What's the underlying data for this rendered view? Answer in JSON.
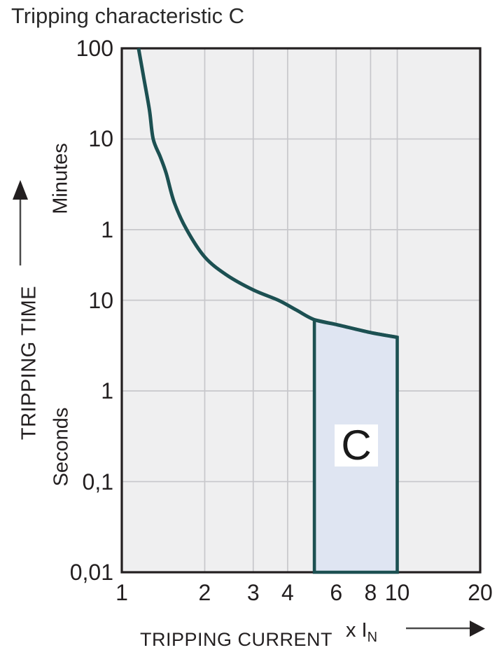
{
  "title": "Tripping characteristic C",
  "y_axis": {
    "title": "TRIPPING TIME",
    "unit_top": "Minutes",
    "unit_bottom": "Seconds"
  },
  "x_axis": {
    "title": "TRIPPING CURRENT",
    "unit_prefix": "x I",
    "unit_sub": "N"
  },
  "colors": {
    "curve": "#1c5052",
    "region_fill": "#dfe5f2",
    "region_stroke": "#1c5052",
    "plot_bg": "#efeff0",
    "grid": "#c7c7cb",
    "border": "#231f20",
    "arrow": "#2e2e2e",
    "text": "#231f20"
  },
  "chart_data": {
    "type": "line",
    "title": "Tripping characteristic C",
    "xlabel": "TRIPPING CURRENT x IN",
    "ylabel": "TRIPPING TIME",
    "x_scale": "log",
    "y_scale": "log",
    "x_range": [
      1,
      20
    ],
    "y_range_seconds": [
      6000,
      0.01
    ],
    "grid": true,
    "x_ticks": [
      {
        "v": 1,
        "label": "1"
      },
      {
        "v": 2,
        "label": "2"
      },
      {
        "v": 3,
        "label": "3"
      },
      {
        "v": 4,
        "label": "4"
      },
      {
        "v": 6,
        "label": "6"
      },
      {
        "v": 8,
        "label": "8"
      },
      {
        "v": 10,
        "label": "10"
      },
      {
        "v": 20,
        "label": "20"
      }
    ],
    "y_ticks": [
      {
        "t": 6000,
        "label": "100",
        "unit": "minutes"
      },
      {
        "t": 600,
        "label": "10",
        "unit": "minutes"
      },
      {
        "t": 60,
        "label": "1",
        "unit": "minutes"
      },
      {
        "t": 10,
        "label": "10",
        "unit": "seconds"
      },
      {
        "t": 1,
        "label": "1",
        "unit": "seconds"
      },
      {
        "t": 0.1,
        "label": "0,1",
        "unit": "seconds"
      },
      {
        "t": 0.01,
        "label": "0,01",
        "unit": "seconds"
      }
    ],
    "x_gridlines": [
      2,
      3,
      4,
      6,
      8,
      10
    ],
    "y_gridlines_seconds": [
      600,
      60,
      10,
      1,
      0.1
    ],
    "curve_points_x_vs_seconds": [
      [
        1.15,
        6000
      ],
      [
        1.2,
        2900
      ],
      [
        1.26,
        1250
      ],
      [
        1.3,
        600
      ],
      [
        1.38,
        380
      ],
      [
        1.45,
        250
      ],
      [
        1.55,
        120
      ],
      [
        1.72,
        60
      ],
      [
        2,
        30
      ],
      [
        2.4,
        19
      ],
      [
        3,
        13
      ],
      [
        3.7,
        10
      ],
      [
        4.3,
        7.8
      ],
      [
        5,
        6.1
      ],
      [
        6,
        5.4
      ],
      [
        8,
        4.4
      ],
      [
        10,
        3.9
      ]
    ],
    "region": {
      "label": "C",
      "x_from": 5,
      "x_to": 10,
      "t_bottom_seconds": 0.01,
      "top_points_x_vs_seconds": [
        [
          5,
          6.1
        ],
        [
          6,
          5.4
        ],
        [
          8,
          4.4
        ],
        [
          10,
          3.9
        ]
      ]
    }
  }
}
